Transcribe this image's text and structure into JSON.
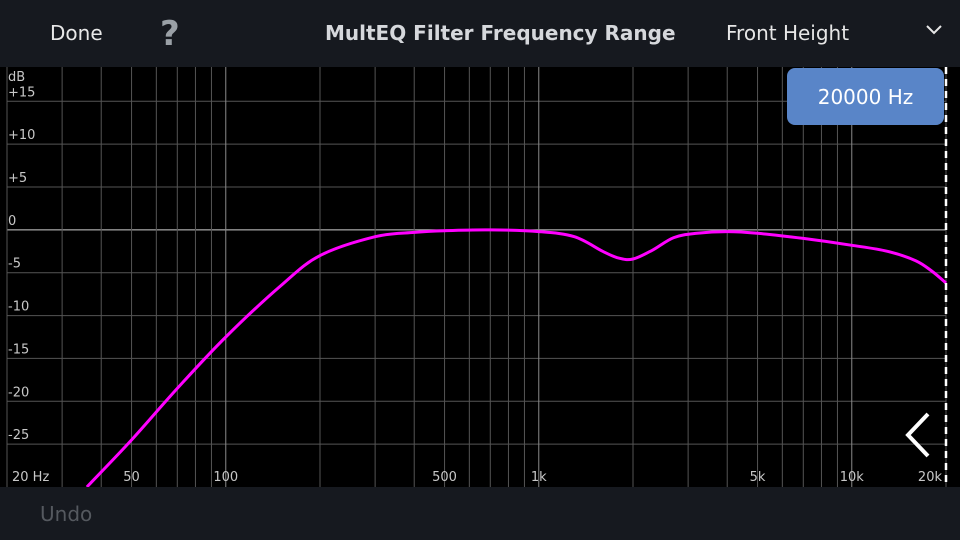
{
  "header": {
    "done_label": "Done",
    "help_glyph": "?",
    "title": "MultEQ Filter Frequency Range",
    "channel": "Front Height"
  },
  "badge": {
    "frequency_label": "20000 Hz"
  },
  "footer": {
    "undo_label": "Undo"
  },
  "chart_data": {
    "type": "line",
    "x_scale": "log",
    "xlim": [
      20,
      20000
    ],
    "ylim": [
      -30,
      19
    ],
    "ylabel": "dB",
    "grid": true,
    "y_ticks": [
      {
        "value": 15,
        "label": "+15"
      },
      {
        "value": 10,
        "label": "+10"
      },
      {
        "value": 5,
        "label": "+5"
      },
      {
        "value": 0,
        "label": "0"
      },
      {
        "value": -5,
        "label": "-5"
      },
      {
        "value": -10,
        "label": "-10"
      },
      {
        "value": -15,
        "label": "-15"
      },
      {
        "value": -20,
        "label": "-20"
      },
      {
        "value": -25,
        "label": "-25"
      }
    ],
    "x_tick_labels": [
      {
        "value": 20,
        "label": "20 Hz"
      },
      {
        "value": 50,
        "label": "50"
      },
      {
        "value": 100,
        "label": "100"
      },
      {
        "value": 500,
        "label": "500"
      },
      {
        "value": 1000,
        "label": "1k"
      },
      {
        "value": 5000,
        "label": "5k"
      },
      {
        "value": 10000,
        "label": "10k"
      },
      {
        "value": 20000,
        "label": "20k"
      }
    ],
    "x_gridlines": [
      20,
      30,
      40,
      50,
      60,
      70,
      80,
      90,
      100,
      200,
      300,
      400,
      500,
      600,
      700,
      800,
      900,
      1000,
      2000,
      3000,
      4000,
      5000,
      6000,
      7000,
      8000,
      9000,
      10000,
      20000
    ],
    "series": [
      {
        "color": "#ff00ff",
        "x": [
          36,
          50,
          70,
          100,
          150,
          200,
          300,
          400,
          500,
          700,
          1000,
          1300,
          1600,
          1800,
          2000,
          2300,
          2700,
          3200,
          4000,
          5000,
          7000,
          10000,
          13000,
          16000,
          18000,
          20000
        ],
        "y": [
          -30,
          -24.5,
          -18.5,
          -12.5,
          -6.5,
          -3,
          -0.8,
          -0.3,
          -0.1,
          0,
          -0.2,
          -0.8,
          -2.5,
          -3.3,
          -3.4,
          -2.4,
          -0.9,
          -0.4,
          -0.2,
          -0.4,
          -1,
          -1.8,
          -2.5,
          -3.6,
          -4.8,
          -6.2
        ]
      }
    ],
    "marker": {
      "value": 20000,
      "style": "dashed",
      "color": "#ffffff"
    }
  }
}
